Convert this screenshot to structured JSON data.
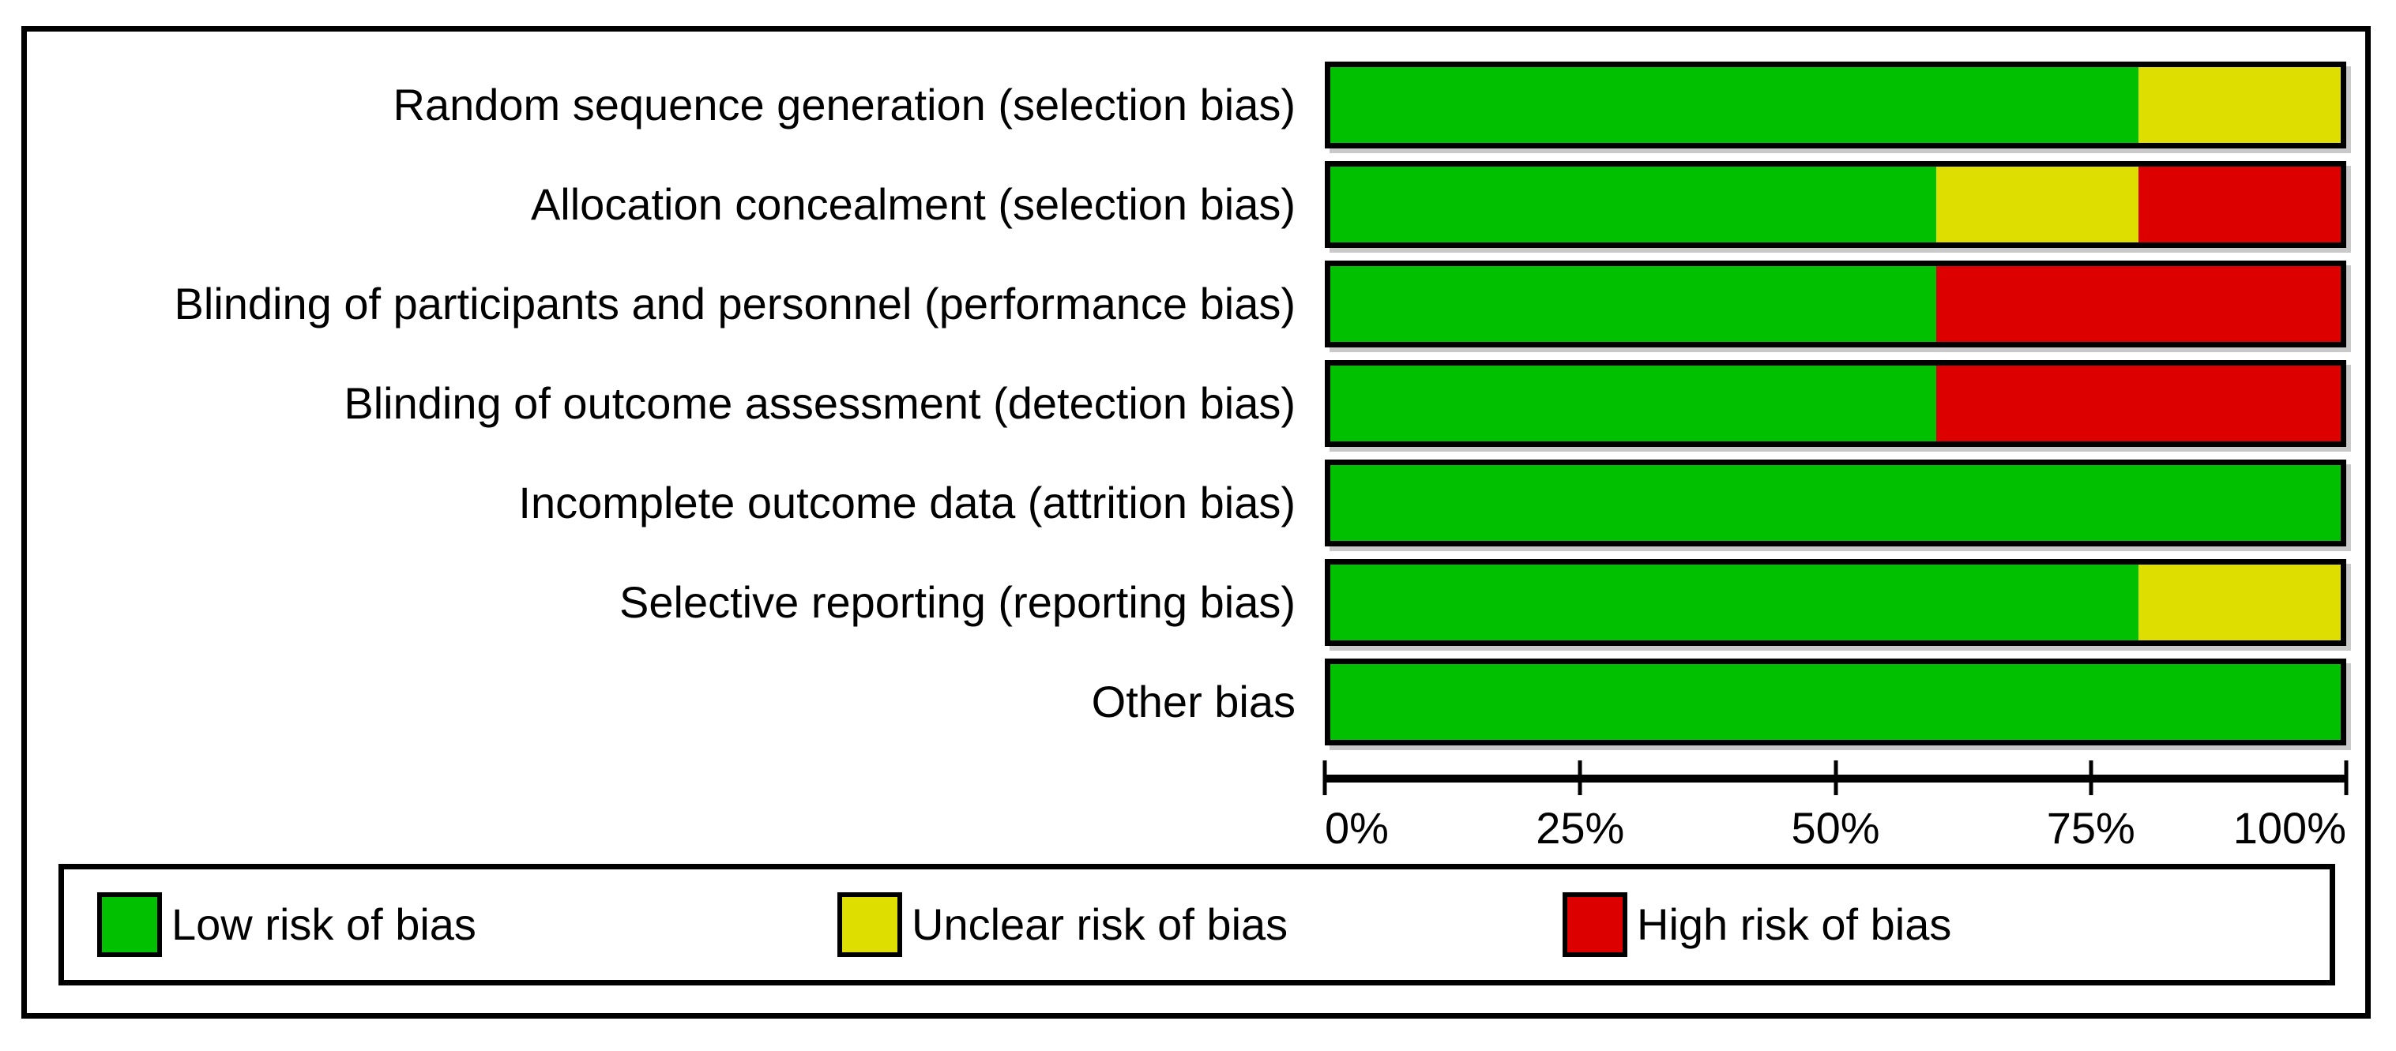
{
  "colors": {
    "low": "#00c000",
    "unclear": "#dede00",
    "high": "#dd0000",
    "border": "#000000",
    "shadow": "#c9c9c9"
  },
  "chart_data": {
    "type": "bar",
    "stacked": true,
    "orientation": "horizontal",
    "unit": "%",
    "xlim": [
      0,
      100
    ],
    "x_ticks": [
      {
        "label": "0%",
        "value": 0
      },
      {
        "label": "25%",
        "value": 25
      },
      {
        "label": "50%",
        "value": 50
      },
      {
        "label": "75%",
        "value": 75
      },
      {
        "label": "100%",
        "value": 100
      }
    ],
    "grid": false,
    "legend_position": "bottom",
    "categories": [
      "Random sequence generation (selection bias)",
      "Allocation concealment (selection bias)",
      "Blinding of participants and personnel (performance bias)",
      "Blinding of outcome assessment (detection bias)",
      "Incomplete outcome data (attrition bias)",
      "Selective reporting (reporting bias)",
      "Other bias"
    ],
    "series": [
      {
        "name": "Low risk of bias",
        "key": "low",
        "values": [
          80,
          60,
          60,
          60,
          100,
          80,
          100
        ]
      },
      {
        "name": "Unclear risk of bias",
        "key": "unclear",
        "values": [
          20,
          20,
          0,
          0,
          0,
          20,
          0
        ]
      },
      {
        "name": "High risk of bias",
        "key": "high",
        "values": [
          0,
          20,
          40,
          40,
          0,
          0,
          0
        ]
      }
    ]
  },
  "legend": {
    "items": [
      {
        "label": "Low risk of bias",
        "key": "low"
      },
      {
        "label": "Unclear risk of bias",
        "key": "unclear"
      },
      {
        "label": "High risk of bias",
        "key": "high"
      }
    ]
  }
}
